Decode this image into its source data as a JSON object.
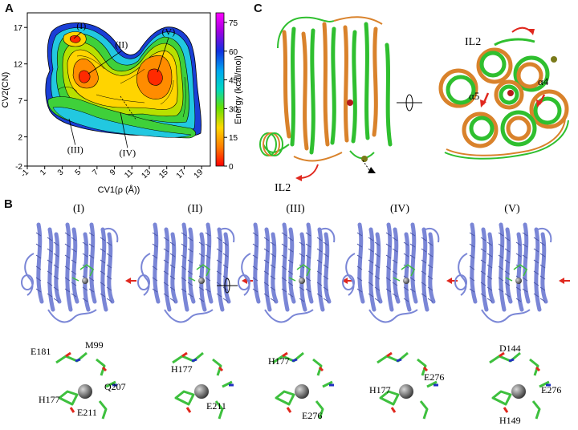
{
  "panels": {
    "a_label": "A",
    "b_label": "B",
    "c_label": "C"
  },
  "chart_data": {
    "type": "heatmap",
    "xlabel": "CV1(ρ (Å))",
    "ylabel": "CV2(CN)",
    "x_ticks": [
      "-1",
      "1",
      "3",
      "5",
      "7",
      "9",
      "11",
      "13",
      "15",
      "17",
      "19"
    ],
    "y_ticks": [
      "-2",
      "2",
      "7",
      "12",
      "17"
    ],
    "xlim": [
      -1,
      20
    ],
    "ylim": [
      -2,
      19
    ],
    "colorbar": {
      "label": "Energy (kcal/mol)",
      "ticks": [
        "0",
        "15",
        "30",
        "45",
        "60",
        "75"
      ],
      "range": [
        0,
        80
      ]
    },
    "region_labels": [
      {
        "label": "(I)",
        "x": 5.2,
        "y": 16.8
      },
      {
        "label": "(II)",
        "x": 9.8,
        "y": 14.2
      },
      {
        "label": "(III)",
        "x": 4.5,
        "y": -0.2
      },
      {
        "label": "(IV)",
        "x": 10.5,
        "y": -0.6
      },
      {
        "label": "(V)",
        "x": 15.2,
        "y": 16.0
      }
    ],
    "minima": [
      {
        "x": 4.5,
        "y": 15.0,
        "energy": 3
      },
      {
        "x": 6.5,
        "y": 8.5,
        "energy": 5
      },
      {
        "x": 14.2,
        "y": 10.5,
        "energy": 2
      }
    ]
  },
  "panel_b": {
    "states": [
      "(I)",
      "(II)",
      "(III)",
      "(IV)",
      "(V)"
    ],
    "residues": {
      "s1": [
        "E181",
        "M99",
        "Q207",
        "H177",
        "E211"
      ],
      "s2": [
        "H177",
        "E211"
      ],
      "s3": [
        "H177",
        "E276"
      ],
      "s4": [
        "H177",
        "E276"
      ],
      "s5": [
        "D144",
        "E276",
        "H149"
      ]
    }
  },
  "panel_c": {
    "labels": {
      "il2_left": "IL2",
      "il2_right": "IL2",
      "a5": "α5",
      "a4": "α4"
    }
  },
  "colors": {
    "green": "#2fbf2f",
    "orange": "#d9822b",
    "helix_blue": "#7a86d6",
    "stick_green": "#3ec03e",
    "arrow_red": "#e0281e"
  }
}
